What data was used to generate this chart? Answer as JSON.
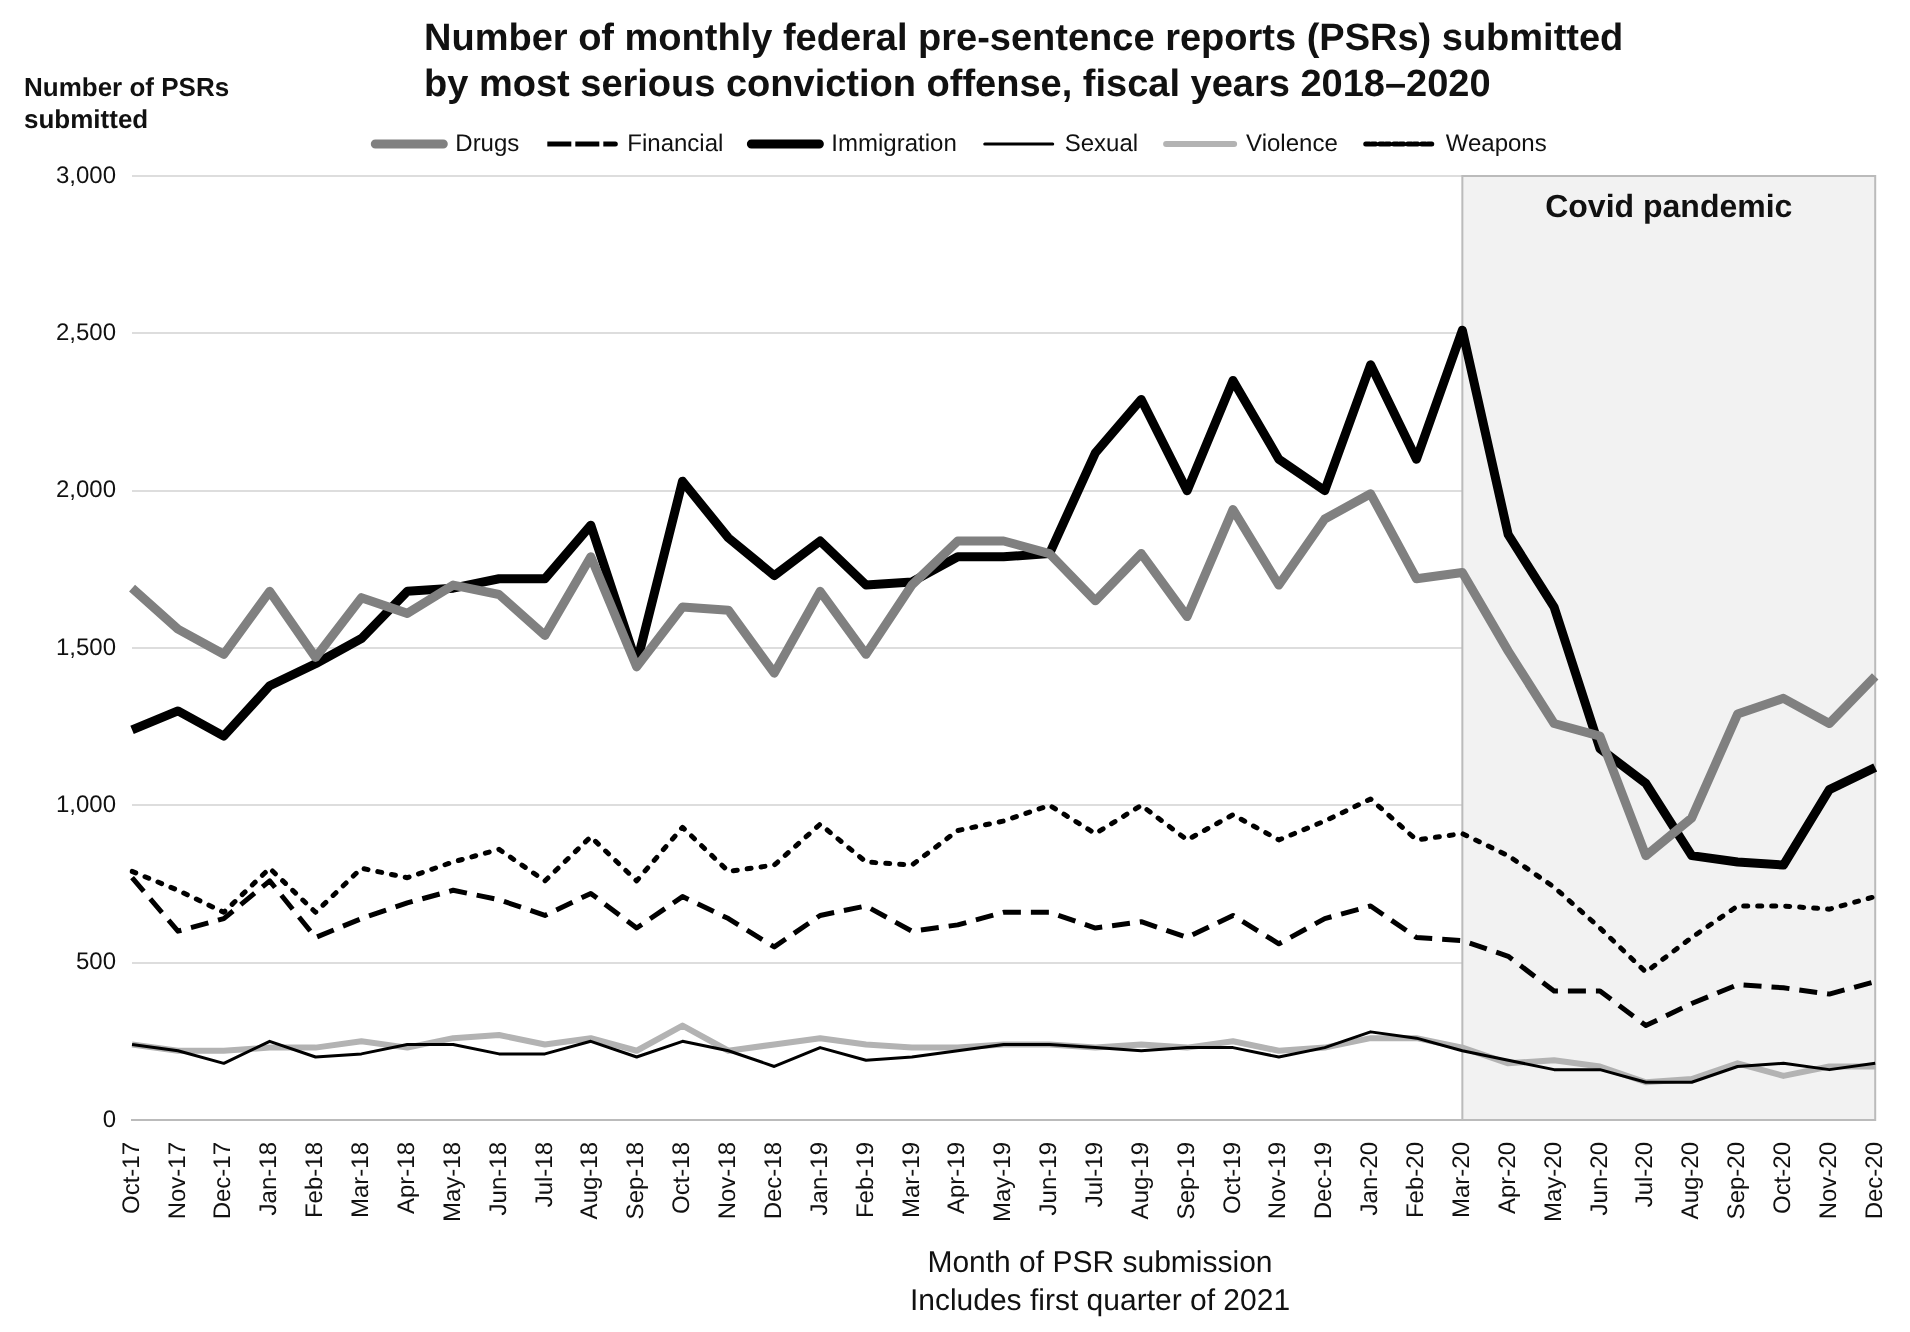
{
  "chart_data": {
    "type": "line",
    "title": "Number of monthly federal pre-sentence reports (PSRs) submitted by most serious conviction offense, fiscal years 2018–2020",
    "ylabel": "Number of PSRs submitted",
    "xlabel": "Month of PSR submission",
    "annotations": [
      "Includes first quarter of 2021"
    ],
    "categories": [
      "Oct-17",
      "Nov-17",
      "Dec-17",
      "Jan-18",
      "Feb-18",
      "Mar-18",
      "Apr-18",
      "May-18",
      "Jun-18",
      "Jul-18",
      "Aug-18",
      "Sep-18",
      "Oct-18",
      "Nov-18",
      "Dec-18",
      "Jan-19",
      "Feb-19",
      "Mar-19",
      "Apr-19",
      "May-19",
      "Jun-19",
      "Jul-19",
      "Aug-19",
      "Sep-19",
      "Oct-19",
      "Nov-19",
      "Dec-19",
      "Jan-20",
      "Feb-20",
      "Mar-20",
      "Apr-20",
      "May-20",
      "Jun-20",
      "Jul-20",
      "Aug-20",
      "Sep-20",
      "Oct-20",
      "Nov-20",
      "Dec-20"
    ],
    "series": [
      {
        "name": "Drugs",
        "color": "#808080",
        "line_style": "solid",
        "values": [
          1690,
          1560,
          1480,
          1680,
          1470,
          1660,
          1610,
          1700,
          1670,
          1540,
          1790,
          1440,
          1630,
          1620,
          1420,
          1680,
          1480,
          1700,
          1840,
          1840,
          1800,
          1650,
          1800,
          1600,
          1940,
          1700,
          1910,
          1990,
          1720,
          1740,
          1490,
          1260,
          1220,
          840,
          960,
          1290,
          1340,
          1260,
          1410
        ]
      },
      {
        "name": "Financial",
        "color": "#000000",
        "line_style": "dashed",
        "values": [
          770,
          600,
          640,
          760,
          580,
          640,
          690,
          730,
          700,
          650,
          720,
          610,
          710,
          640,
          550,
          650,
          680,
          600,
          620,
          660,
          660,
          610,
          630,
          580,
          650,
          560,
          640,
          680,
          580,
          570,
          520,
          410,
          410,
          300,
          370,
          430,
          420,
          400,
          440
        ]
      },
      {
        "name": "Immigration",
        "color": "#000000",
        "line_style": "solid",
        "values": [
          1240,
          1300,
          1220,
          1380,
          1450,
          1530,
          1680,
          1690,
          1720,
          1720,
          1890,
          1450,
          2030,
          1850,
          1730,
          1840,
          1700,
          1710,
          1790,
          1790,
          1800,
          2120,
          2290,
          2000,
          2350,
          2100,
          2000,
          2400,
          2100,
          2510,
          1860,
          1630,
          1180,
          1070,
          840,
          820,
          810,
          1050,
          1120
        ]
      },
      {
        "name": "Sexual",
        "color": "#000000",
        "line_style": "solid",
        "values": [
          240,
          220,
          180,
          250,
          200,
          210,
          240,
          240,
          210,
          210,
          250,
          200,
          250,
          220,
          170,
          230,
          190,
          200,
          220,
          240,
          240,
          230,
          220,
          230,
          230,
          200,
          230,
          280,
          260,
          220,
          190,
          160,
          160,
          120,
          120,
          170,
          180,
          160,
          180
        ]
      },
      {
        "name": "Violence",
        "color": "#b3b3b3",
        "line_style": "solid",
        "values": [
          240,
          220,
          220,
          230,
          230,
          250,
          230,
          260,
          270,
          240,
          260,
          220,
          300,
          220,
          240,
          260,
          240,
          230,
          230,
          240,
          240,
          230,
          240,
          230,
          250,
          220,
          230,
          260,
          260,
          230,
          180,
          190,
          170,
          120,
          130,
          180,
          140,
          170,
          170
        ]
      },
      {
        "name": "Weapons",
        "color": "#000000",
        "line_style": "dotted",
        "values": [
          790,
          730,
          660,
          800,
          660,
          800,
          770,
          820,
          860,
          760,
          900,
          760,
          930,
          790,
          810,
          940,
          820,
          810,
          920,
          950,
          1000,
          910,
          1000,
          890,
          970,
          890,
          950,
          1020,
          890,
          910,
          840,
          740,
          610,
          470,
          580,
          680,
          680,
          670,
          710
        ]
      }
    ],
    "ylim": [
      0,
      3000
    ],
    "yticks": [
      {
        "value": 0,
        "label": "0"
      },
      {
        "value": 500,
        "label": "500"
      },
      {
        "value": 1000,
        "label": "1,000"
      },
      {
        "value": 1500,
        "label": "1,500"
      },
      {
        "value": 2000,
        "label": "2,000"
      },
      {
        "value": 2500,
        "label": "2,500"
      },
      {
        "value": 3000,
        "label": "3,000"
      }
    ],
    "bands": [
      {
        "axis": "x",
        "from": "Mar-20",
        "to": "Dec-20",
        "label": "Covid pandemic",
        "color": "#f2f2f2"
      }
    ],
    "grid": "y",
    "legend": "top",
    "marker": "none"
  }
}
